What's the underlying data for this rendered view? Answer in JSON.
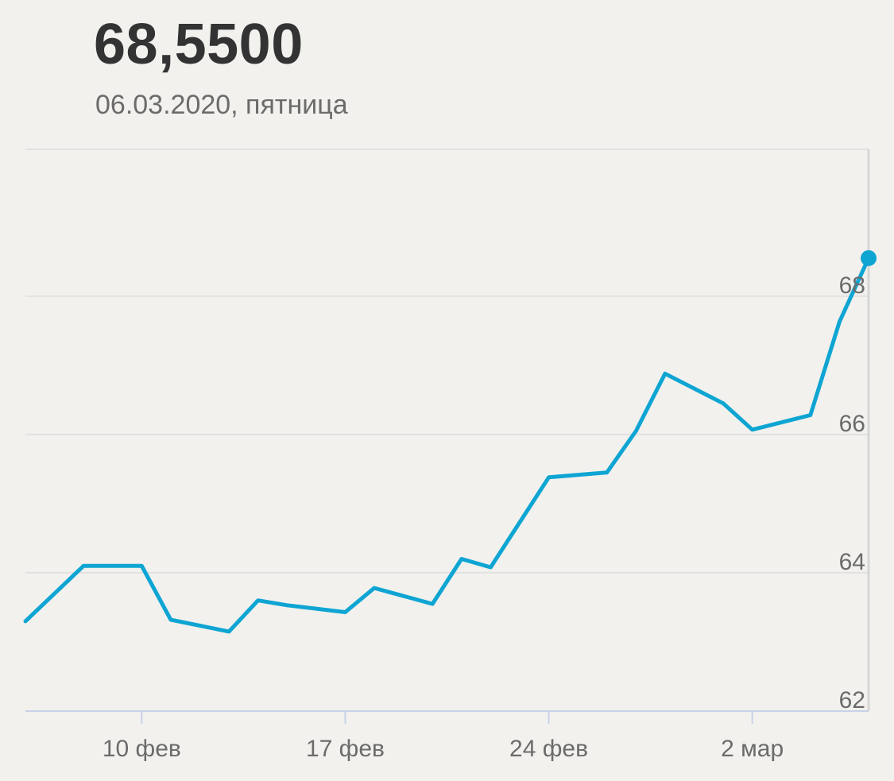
{
  "header": {
    "value": "68,5500",
    "date": "06.03.2020, пятница"
  },
  "colors": {
    "line": "#0ea5d3",
    "grid": "#e1e1e1",
    "axis": "#c8d2e6",
    "text": "#6b6b6b"
  },
  "chart_data": {
    "type": "line",
    "title": "",
    "xlabel": "",
    "ylabel": "",
    "ylim": [
      62,
      70.1
    ],
    "xlim": [
      "2020-02-06",
      "2020-03-06"
    ],
    "y_ticks": [
      {
        "value": 62,
        "label": "62"
      },
      {
        "value": 64,
        "label": "64"
      },
      {
        "value": 66,
        "label": "66"
      },
      {
        "value": 68,
        "label": "68"
      }
    ],
    "x_ticks": [
      {
        "date": "2020-02-10",
        "label": "10 фев"
      },
      {
        "date": "2020-02-17",
        "label": "17 фев"
      },
      {
        "date": "2020-02-24",
        "label": "24 фев"
      },
      {
        "date": "2020-03-02",
        "label": "2 мар"
      }
    ],
    "grid": true,
    "series": [
      {
        "points": [
          {
            "date": "2020-02-06",
            "value": 63.3
          },
          {
            "date": "2020-02-08",
            "value": 64.1
          },
          {
            "date": "2020-02-10",
            "value": 64.1
          },
          {
            "date": "2020-02-11",
            "value": 63.32
          },
          {
            "date": "2020-02-13",
            "value": 63.15
          },
          {
            "date": "2020-02-14",
            "value": 63.6
          },
          {
            "date": "2020-02-15",
            "value": 63.53
          },
          {
            "date": "2020-02-17",
            "value": 63.43
          },
          {
            "date": "2020-02-18",
            "value": 63.78
          },
          {
            "date": "2020-02-20",
            "value": 63.55
          },
          {
            "date": "2020-02-21",
            "value": 64.2
          },
          {
            "date": "2020-02-22",
            "value": 64.08
          },
          {
            "date": "2020-02-24",
            "value": 65.38
          },
          {
            "date": "2020-02-26",
            "value": 65.45
          },
          {
            "date": "2020-02-27",
            "value": 66.05
          },
          {
            "date": "2020-02-28",
            "value": 66.88
          },
          {
            "date": "2020-03-01",
            "value": 66.45
          },
          {
            "date": "2020-03-02",
            "value": 66.07
          },
          {
            "date": "2020-03-04",
            "value": 66.28
          },
          {
            "date": "2020-03-05",
            "value": 67.63
          },
          {
            "date": "2020-03-06",
            "value": 68.55
          }
        ]
      }
    ]
  }
}
